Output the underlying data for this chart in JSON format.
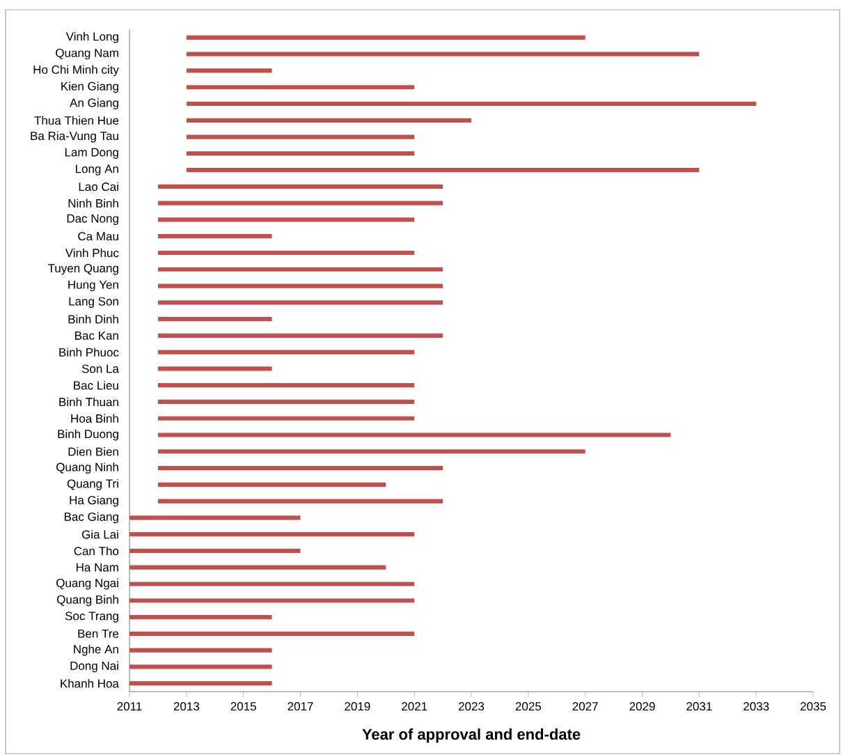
{
  "chart_data": {
    "type": "bar",
    "orientation": "horizontal",
    "xlabel": "Year of approval and end-date",
    "color": "#c0504d",
    "categories": [
      "Vinh Long",
      "Quang Nam",
      "Ho Chi Minh city",
      "Kien Giang",
      "An Giang",
      "Thua Thien Hue",
      "Ba Ria-Vung Tau",
      "Lam Dong",
      "Long An",
      "Lao Cai",
      "Ninh Binh",
      "Dac Nong",
      "Ca Mau",
      "Vinh Phuc",
      "Tuyen Quang",
      "Hung Yen",
      "Lang Son",
      "Binh Dinh",
      "Bac Kan",
      "Binh Phuoc",
      "Son La",
      "Bac Lieu",
      "Binh Thuan",
      "Hoa Binh",
      "Binh Duong",
      "Dien Bien",
      "Quang Ninh",
      "Quang Tri",
      "Ha Giang",
      "Bac Giang",
      "Gia Lai",
      "Can Tho",
      "Ha Nam",
      "Quang Ngai",
      "Quang Binh",
      "Soc Trang",
      "Ben Tre",
      "Nghe An",
      "Dong Nai",
      "Khanh Hoa"
    ],
    "base": [
      2013,
      2013,
      2013,
      2013,
      2013,
      2013,
      2013,
      2013,
      2013,
      2012,
      2012,
      2012,
      2012,
      2012,
      2012,
      2012,
      2012,
      2012,
      2012,
      2012,
      2012,
      2012,
      2012,
      2012,
      2012,
      2012,
      2012,
      2012,
      2012,
      2011,
      2011,
      2011,
      2011,
      2011,
      2011,
      2011,
      2011,
      2011,
      2011,
      2011
    ],
    "values": [
      14,
      18,
      3,
      8,
      20,
      10,
      8,
      8,
      18,
      10,
      10,
      9,
      4,
      9,
      10,
      10,
      10,
      4,
      10,
      9,
      4,
      9,
      9,
      9,
      18,
      15,
      10,
      8,
      10,
      6,
      10,
      6,
      9,
      10,
      10,
      5,
      10,
      5,
      5,
      5
    ],
    "xlim": [
      2011,
      2035
    ],
    "xticks": [
      2011,
      2013,
      2015,
      2017,
      2019,
      2021,
      2023,
      2025,
      2027,
      2029,
      2031,
      2033,
      2035
    ],
    "grid": false
  }
}
